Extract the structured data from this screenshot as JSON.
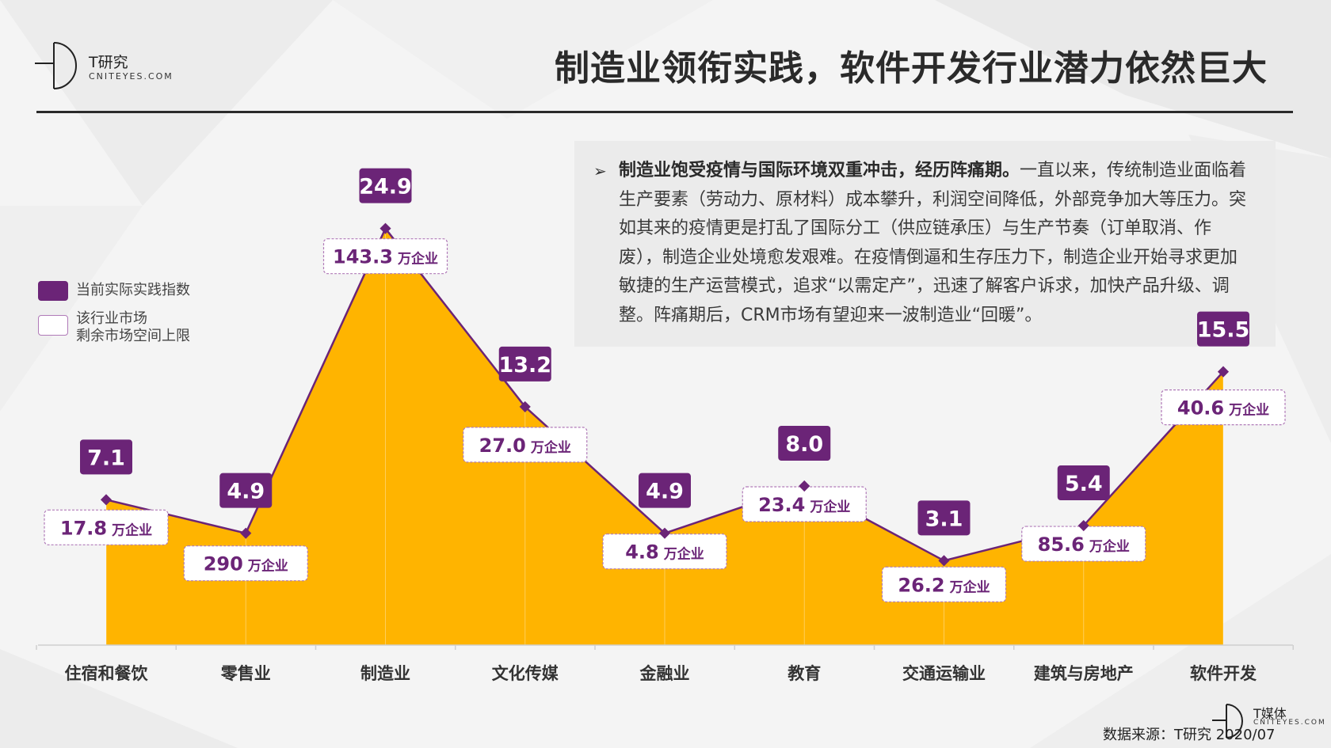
{
  "header": {
    "logo_name": "T研究",
    "logo_sub": "CNITEYES.COM",
    "title": "制造业领衔实践，软件开发行业潜力依然巨大"
  },
  "textbox": {
    "bold_lead": "制造业饱受疫情与国际环境双重冲击，经历阵痛期。",
    "body": "一直以来，传统制造业面临着生产要素（劳动力、原材料）成本攀升，利润空间降低，外部竞争加大等压力。突如其来的疫情更是打乱了国际分工（供应链承压）与生产节奏（订单取消、作废），制造企业处境愈发艰难。在疫情倒逼和生存压力下，制造企业开始寻求更加敏捷的生产运营模式，追求“以需定产”，迅速了解客户诉求，加快产品升级、调整。阵痛期后，CRM市场有望迎来一波制造业“回暖”。"
  },
  "legend": {
    "item1": "当前实际实践指数",
    "item2_line1": "该行业市场",
    "item2_line2": "剩余市场空间上限"
  },
  "colors": {
    "purple": "#6b2477",
    "area": "#ffb400",
    "border": "#b07ab8"
  },
  "chart_data": {
    "type": "area",
    "categories": [
      "住宿和餐饮",
      "零售业",
      "制造业",
      "文化传媒",
      "金融业",
      "教育",
      "交通运输业",
      "建筑与房地产",
      "软件开发"
    ],
    "series": [
      {
        "name": "当前实际实践指数",
        "values": [
          7.1,
          4.9,
          24.9,
          13.2,
          4.9,
          8.0,
          3.1,
          5.4,
          15.5
        ],
        "labels": [
          "7.1",
          "4.9",
          "24.9",
          "13.2",
          "4.9",
          "8.0",
          "3.1",
          "5.4",
          "15.5"
        ]
      },
      {
        "name": "该行业市场剩余市场空间上限",
        "values": [
          17.8,
          290,
          143.3,
          27.0,
          4.8,
          23.4,
          26.2,
          85.6,
          40.6
        ],
        "labels": [
          "17.8",
          "290",
          "143.3",
          "27.0",
          "4.8",
          "23.4",
          "26.2",
          "85.6",
          "40.6"
        ]
      }
    ],
    "unit_suffix": "万企业"
  },
  "footer": {
    "source": "数据来源：T研究 2020/07",
    "logo_name": "T媒体",
    "logo_sub": "CNITEYES.COM"
  }
}
